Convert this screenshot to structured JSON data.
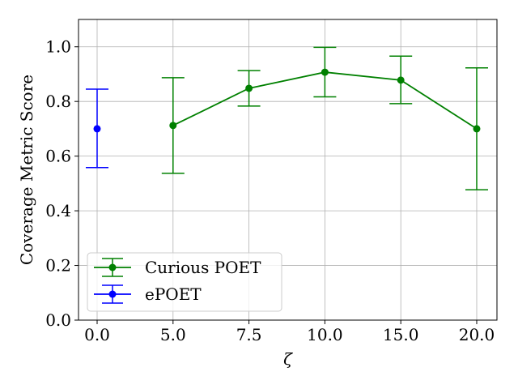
{
  "chart_data": {
    "type": "line",
    "xlabel": "ζ",
    "ylabel": "Coverage Metric Score",
    "ylim": [
      0.0,
      1.1
    ],
    "x_ticks": [
      "0.0",
      "5.0",
      "7.5",
      "10.0",
      "15.0",
      "20.0"
    ],
    "y_ticks": [
      "0.0",
      "0.2",
      "0.4",
      "0.6",
      "0.8",
      "1.0"
    ],
    "y_tick_values": [
      0.0,
      0.2,
      0.4,
      0.6,
      0.8,
      1.0
    ],
    "grid": true,
    "legend_position": "lower-left",
    "series": [
      {
        "name": "Curious POET",
        "color": "#008000",
        "x_index": [
          1,
          2,
          3,
          4,
          5
        ],
        "values": [
          0.712,
          0.848,
          0.907,
          0.878,
          0.7
        ],
        "err_low": [
          0.537,
          0.783,
          0.817,
          0.792,
          0.477
        ],
        "err_high": [
          0.887,
          0.913,
          0.998,
          0.966,
          0.923
        ]
      },
      {
        "name": "ePOET",
        "color": "#0000ff",
        "x_index": [
          0
        ],
        "values": [
          0.7
        ],
        "err_low": [
          0.558
        ],
        "err_high": [
          0.845
        ]
      }
    ]
  }
}
